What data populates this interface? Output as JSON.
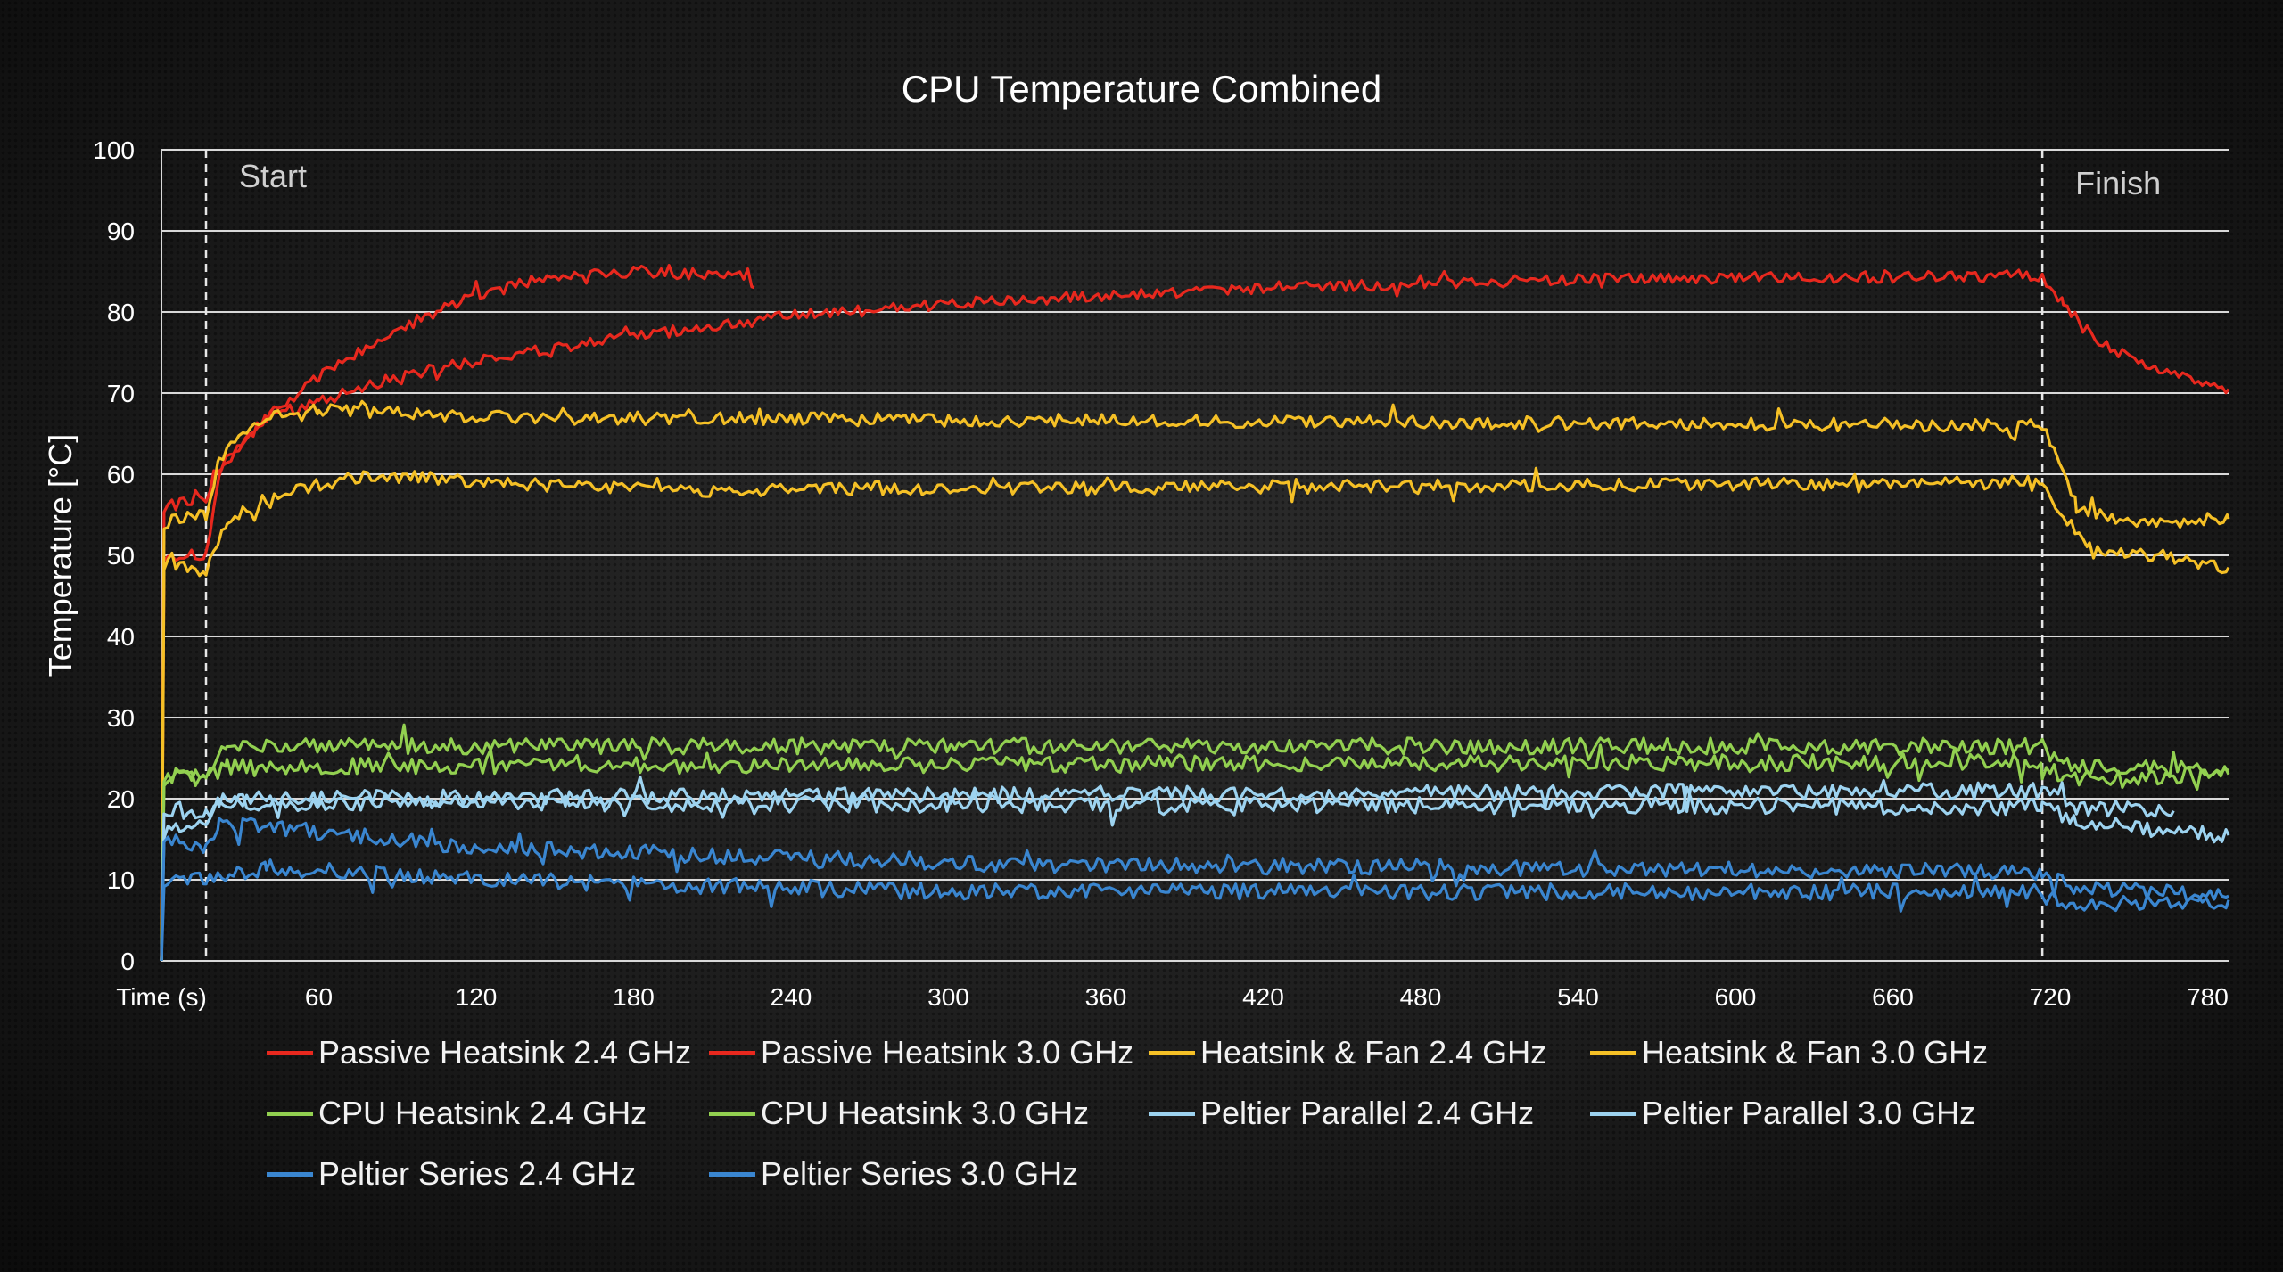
{
  "chart_data": {
    "type": "line",
    "title": "CPU Temperature Combined",
    "xlabel": "Time (s)",
    "ylabel": "Temperature [°C]",
    "xlim": [
      0,
      788
    ],
    "ylim": [
      0,
      100
    ],
    "x_ticks": [
      60,
      120,
      180,
      240,
      300,
      360,
      420,
      480,
      540,
      600,
      660,
      720,
      780
    ],
    "y_ticks": [
      0,
      10,
      20,
      30,
      40,
      50,
      60,
      70,
      80,
      90,
      100
    ],
    "grid": true,
    "legend_position": "bottom",
    "annotations": [
      {
        "label": "Start",
        "x": 17
      },
      {
        "label": "Finish",
        "x": 717
      }
    ],
    "series": [
      {
        "name": "Passive Heatsink 2.4 GHz",
        "color": "#e8281e",
        "noise": 0.7,
        "points": [
          [
            0,
            0
          ],
          [
            1,
            50
          ],
          [
            17,
            50
          ],
          [
            22,
            60
          ],
          [
            40,
            67
          ],
          [
            60,
            69
          ],
          [
            90,
            72
          ],
          [
            120,
            74
          ],
          [
            180,
            77
          ],
          [
            240,
            79.5
          ],
          [
            300,
            81
          ],
          [
            420,
            83
          ],
          [
            540,
            84
          ],
          [
            717,
            84.5
          ],
          [
            725,
            81
          ],
          [
            740,
            76
          ],
          [
            760,
            73
          ],
          [
            788,
            70.5
          ]
        ]
      },
      {
        "name": "Passive Heatsink 3.0 GHz",
        "color": "#e8281e",
        "noise": 0.7,
        "points": [
          [
            0,
            0
          ],
          [
            1,
            56
          ],
          [
            17,
            57
          ],
          [
            20,
            60
          ],
          [
            40,
            67
          ],
          [
            60,
            72
          ],
          [
            90,
            78
          ],
          [
            120,
            82
          ],
          [
            150,
            84.5
          ],
          [
            180,
            85
          ],
          [
            222,
            84.5
          ],
          [
            226,
            83
          ]
        ]
      },
      {
        "name": "Heatsink & Fan 2.4 GHz",
        "color": "#f5c026",
        "noise": 0.8,
        "points": [
          [
            0,
            0
          ],
          [
            1,
            49
          ],
          [
            17,
            48
          ],
          [
            25,
            54
          ],
          [
            50,
            58
          ],
          [
            80,
            60
          ],
          [
            120,
            59
          ],
          [
            200,
            58
          ],
          [
            717,
            59
          ],
          [
            722,
            56
          ],
          [
            735,
            51
          ],
          [
            760,
            50
          ],
          [
            788,
            48.5
          ]
        ]
      },
      {
        "name": "Heatsink & Fan 3.0 GHz",
        "color": "#f5c026",
        "noise": 0.8,
        "points": [
          [
            0,
            0
          ],
          [
            1,
            54
          ],
          [
            17,
            55
          ],
          [
            22,
            62
          ],
          [
            40,
            67
          ],
          [
            60,
            68
          ],
          [
            120,
            67
          ],
          [
            717,
            66
          ],
          [
            722,
            63
          ],
          [
            730,
            56
          ],
          [
            750,
            54
          ],
          [
            788,
            54.5
          ]
        ]
      },
      {
        "name": "CPU Heatsink 2.4 GHz",
        "color": "#92d050",
        "noise": 1.0,
        "points": [
          [
            0,
            0
          ],
          [
            1,
            22.5
          ],
          [
            17,
            22.5
          ],
          [
            25,
            24
          ],
          [
            717,
            24.5
          ],
          [
            725,
            22.5
          ],
          [
            788,
            23
          ]
        ]
      },
      {
        "name": "CPU Heatsink 3.0 GHz",
        "color": "#92d050",
        "noise": 1.0,
        "points": [
          [
            0,
            0
          ],
          [
            1,
            23
          ],
          [
            17,
            23
          ],
          [
            25,
            26.5
          ],
          [
            717,
            26.5
          ],
          [
            725,
            24
          ],
          [
            788,
            23.5
          ]
        ]
      },
      {
        "name": "Peltier Parallel 2.4 GHz",
        "color": "#9dd3f0",
        "noise": 1.0,
        "points": [
          [
            0,
            0
          ],
          [
            1,
            16
          ],
          [
            17,
            17
          ],
          [
            22,
            19.5
          ],
          [
            717,
            19
          ],
          [
            730,
            17
          ],
          [
            788,
            15.5
          ]
        ]
      },
      {
        "name": "Peltier Parallel 3.0 GHz",
        "color": "#9dd3f0",
        "noise": 1.0,
        "points": [
          [
            0,
            0
          ],
          [
            1,
            19
          ],
          [
            17,
            18
          ],
          [
            22,
            20
          ],
          [
            717,
            21
          ],
          [
            730,
            19
          ],
          [
            767,
            18.5
          ]
        ]
      },
      {
        "name": "Peltier Series 2.4 GHz",
        "color": "#3a86d0",
        "noise": 1.0,
        "points": [
          [
            0,
            0
          ],
          [
            1,
            10
          ],
          [
            17,
            10
          ],
          [
            40,
            11.5
          ],
          [
            120,
            10
          ],
          [
            300,
            8.5
          ],
          [
            717,
            8.5
          ],
          [
            730,
            7
          ],
          [
            788,
            7.5
          ]
        ]
      },
      {
        "name": "Peltier Series 3.0 GHz",
        "color": "#3a86d0",
        "noise": 1.0,
        "points": [
          [
            0,
            0
          ],
          [
            1,
            15.5
          ],
          [
            17,
            14
          ],
          [
            22,
            17
          ],
          [
            120,
            14
          ],
          [
            300,
            12
          ],
          [
            500,
            11.5
          ],
          [
            717,
            11
          ],
          [
            730,
            9
          ],
          [
            788,
            8
          ]
        ]
      }
    ]
  }
}
